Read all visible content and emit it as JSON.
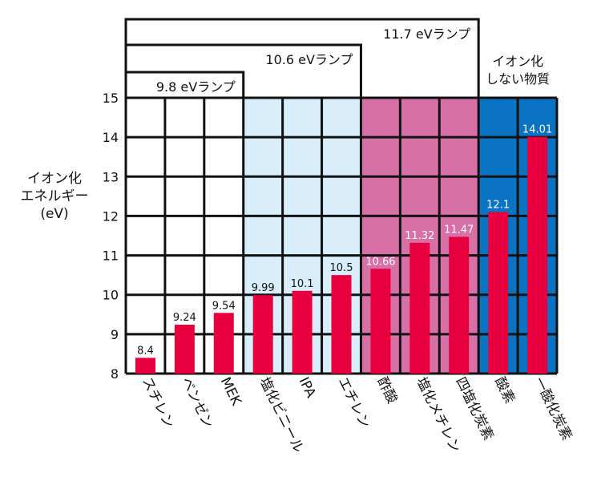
{
  "chart_data": {
    "type": "bar",
    "ylabel_lines": [
      "イオン化",
      "エネルギー",
      "(eV)"
    ],
    "ylim": [
      8,
      15
    ],
    "yticks": [
      8,
      9,
      10,
      11,
      12,
      13,
      14,
      15
    ],
    "grid": true,
    "categories": [
      "スチレン",
      "ベンゼン",
      "MEK",
      "塩化ビニール",
      "IPA",
      "エチレン",
      "酢酸",
      "塩化メチレン",
      "四塩化炭素",
      "酸素",
      "一酸化炭素"
    ],
    "values": [
      8.4,
      9.24,
      9.54,
      9.99,
      10.1,
      10.5,
      10.66,
      11.32,
      11.47,
      12.1,
      14.01
    ],
    "value_labels": [
      "8.4",
      "9.24",
      "9.54",
      "9.99",
      "10.1",
      "10.5",
      "10.66",
      "11.32",
      "11.47",
      "12.1",
      "14.01"
    ],
    "lamp_groups": [
      {
        "label": "9.8 eVランプ",
        "start": 0,
        "end": 2,
        "color": "#ffffff"
      },
      {
        "label": "10.6 eVランプ",
        "start": 3,
        "end": 5,
        "color": "#d9eefb"
      },
      {
        "label": "11.7 eVランプ",
        "start": 6,
        "end": 8,
        "color": "#d670a6"
      }
    ],
    "non_ionizing_group": {
      "label_lines": [
        "イオン化",
        "しない物質"
      ],
      "start": 9,
      "end": 10,
      "color": "#0a73c4"
    },
    "bar_color": "#e8003e"
  }
}
